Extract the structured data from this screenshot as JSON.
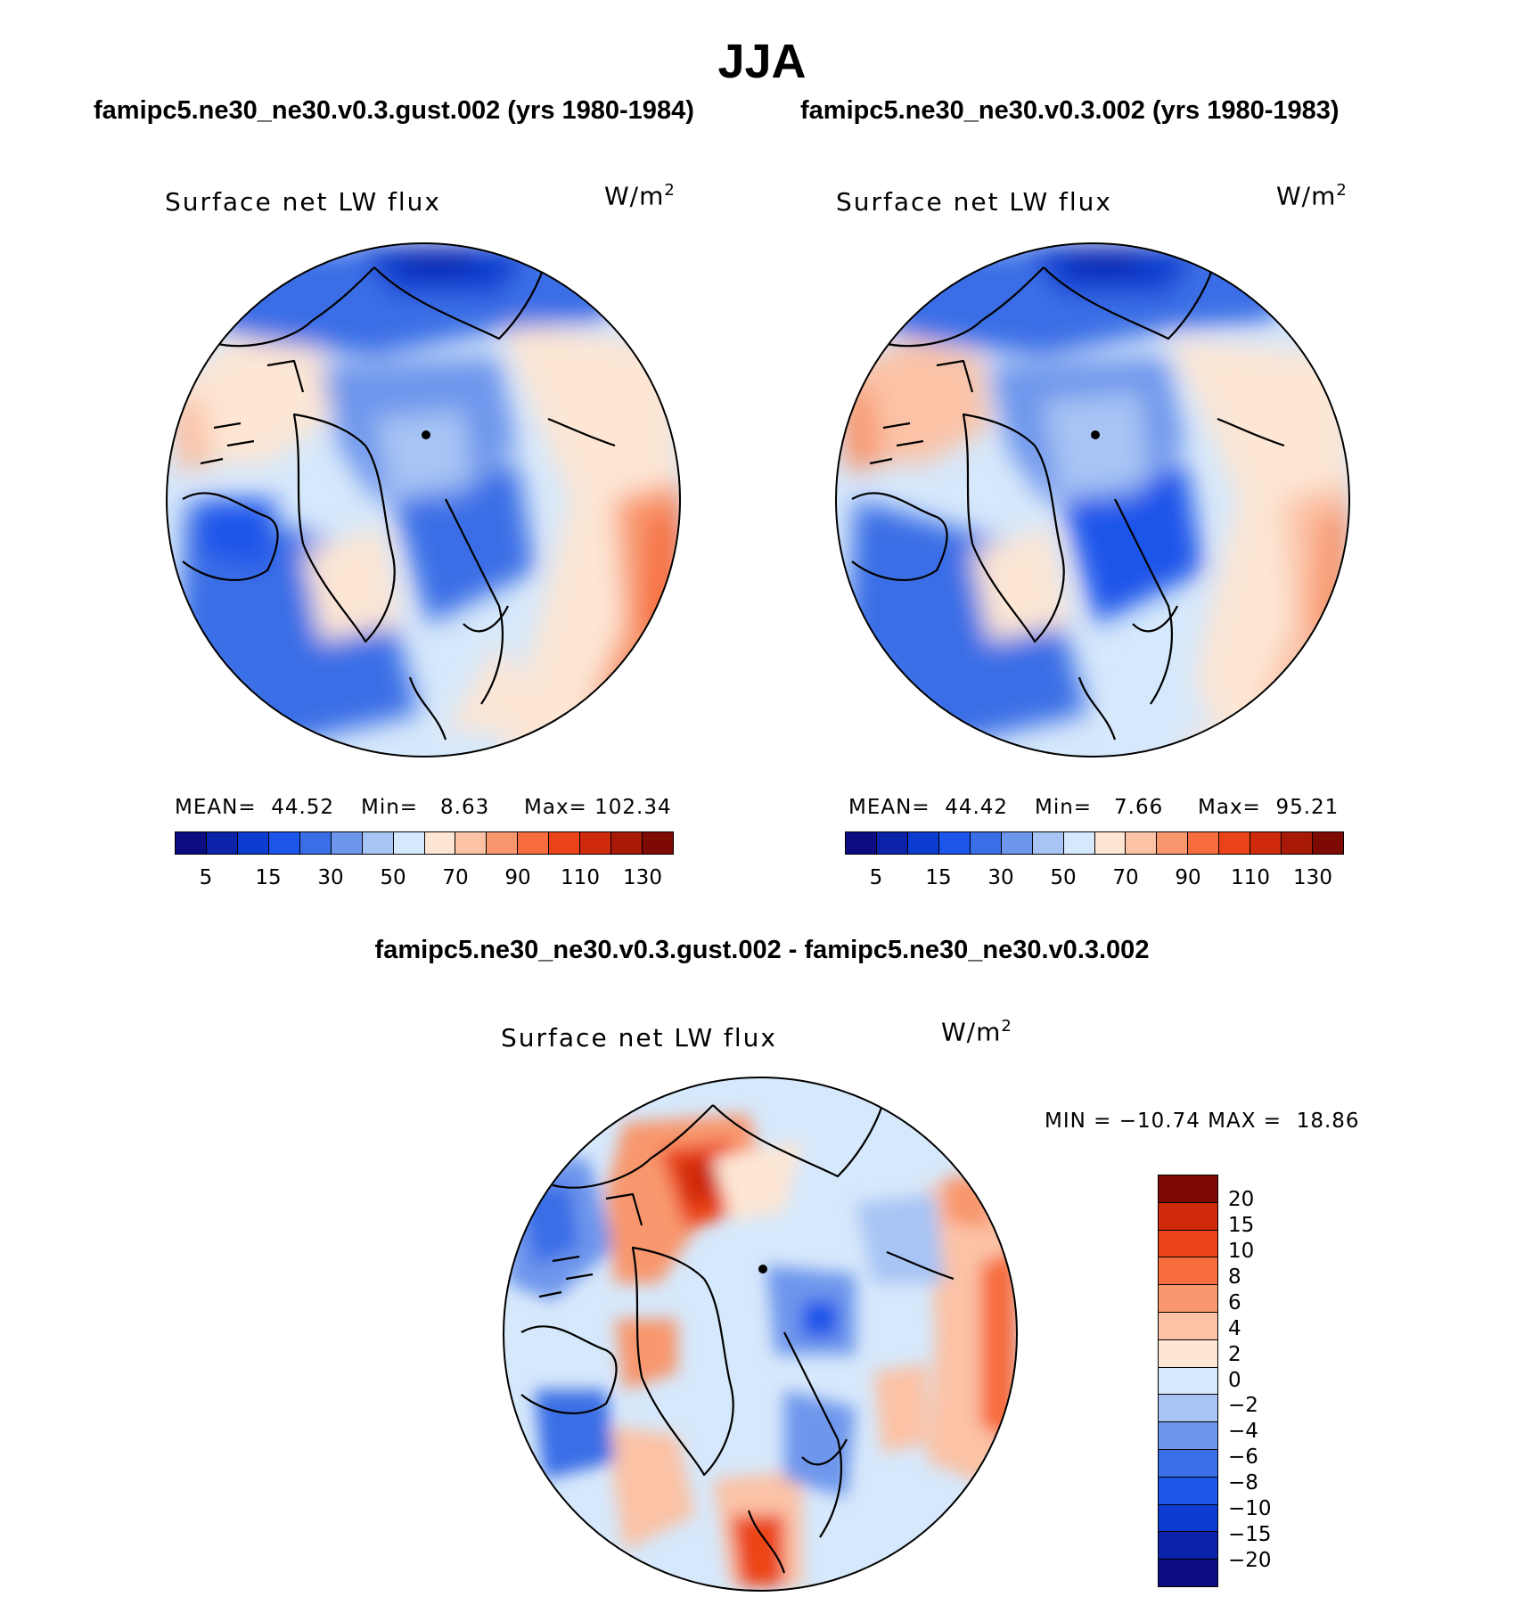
{
  "season": "JJA",
  "colors": {
    "scale": [
      "#0b0c7f",
      "#0a23a8",
      "#0d3dd0",
      "#1c55ea",
      "#3a6ee6",
      "#6e96ec",
      "#a7c4f4",
      "#d6e8fb",
      "#fde6d4",
      "#fbc2a6",
      "#f8976d",
      "#f76d3e",
      "#ec4419",
      "#cf2a0c",
      "#a81a07",
      "#7d0a03"
    ],
    "diff_scale": [
      "#0b0c7f",
      "#0a23a8",
      "#0d3dd0",
      "#1c55ea",
      "#3a6ee6",
      "#6e96ec",
      "#a7c4f4",
      "#d6e8fb",
      "#fde6d4",
      "#fbc2a6",
      "#f8976d",
      "#f76d3e",
      "#ec4419",
      "#cf2a0c",
      "#7d0a03"
    ]
  },
  "panels": [
    {
      "case": "famipc5.ne30_ne30.v0.3.gust.002 (yrs 1980-1984)",
      "variable": "Surface net LW flux",
      "units": "W/m",
      "units_exp": "2",
      "mean": "MEAN=  44.52",
      "min": "Min=   8.63",
      "max": "Max= 102.34"
    },
    {
      "case": "famipc5.ne30_ne30.v0.3.002 (yrs 1980-1983)",
      "variable": "Surface net LW flux",
      "units": "W/m",
      "units_exp": "2",
      "mean": "MEAN=  44.42",
      "min": "Min=   7.66",
      "max": "Max=  95.21"
    }
  ],
  "colorbar_ticks": [
    "5",
    "15",
    "30",
    "50",
    "70",
    "90",
    "110",
    "130"
  ],
  "diff": {
    "title": "famipc5.ne30_ne30.v0.3.gust.002 - famipc5.ne30_ne30.v0.3.002",
    "variable": "Surface net LW flux",
    "units": "W/m",
    "units_exp": "2",
    "minmax": "MIN = −10.74 MAX =  18.86",
    "ticks": [
      "20",
      "15",
      "10",
      "8",
      "6",
      "4",
      "2",
      "0",
      "−2",
      "−4",
      "−6",
      "−8",
      "−10",
      "−15",
      "−20"
    ]
  }
}
